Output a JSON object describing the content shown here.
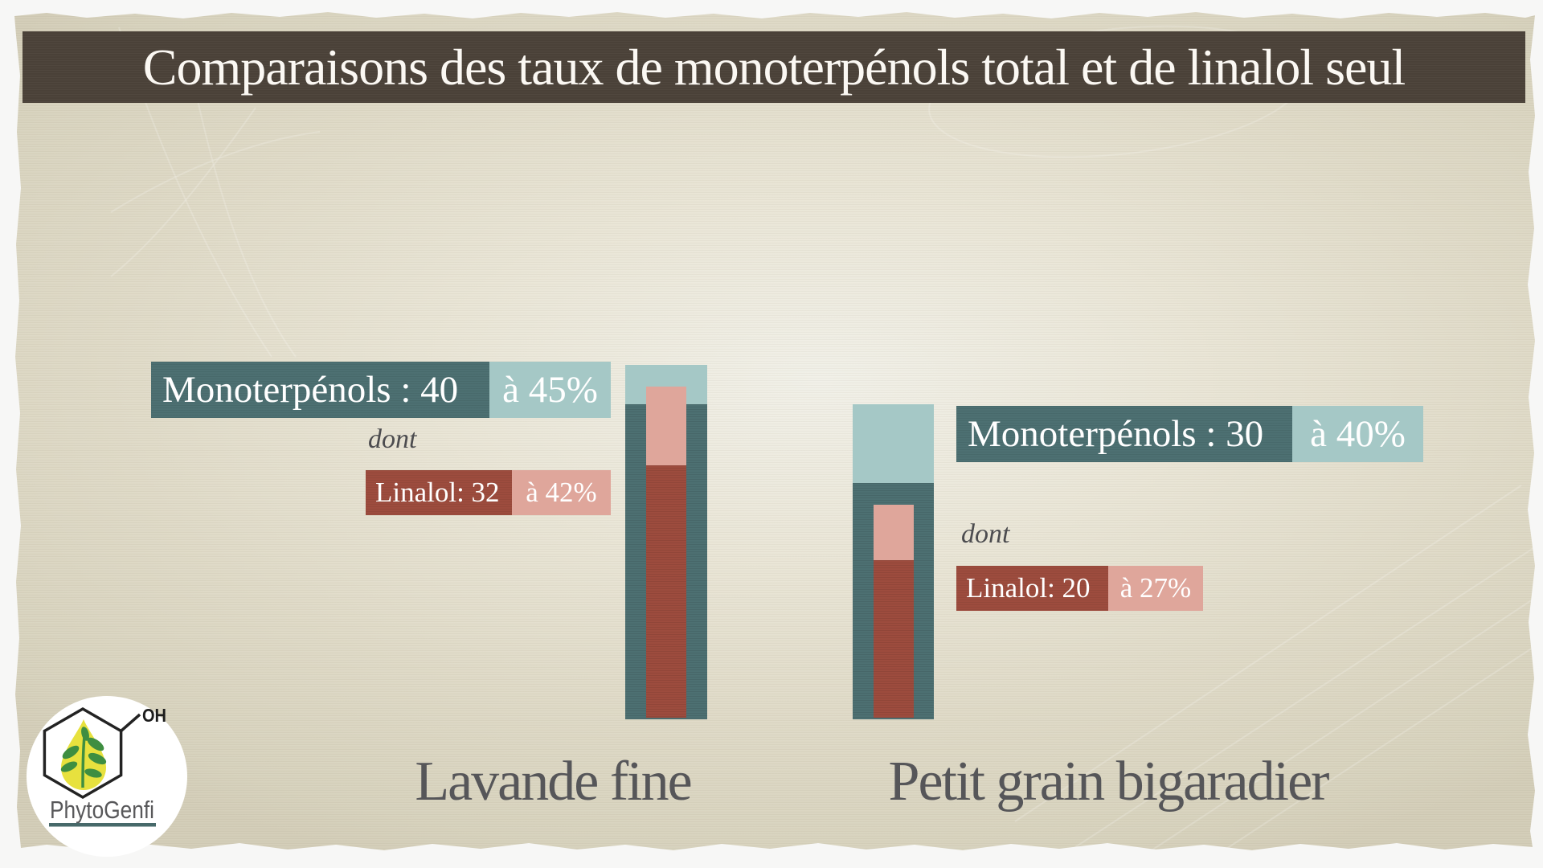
{
  "slide": {
    "title": "Comparaisons des taux de monoterpénols total et de linalol seul",
    "title_bar_color": "#4a4138",
    "paper_color": "#dfdac7"
  },
  "logo": {
    "brand": "PhytoGenfi",
    "formula_label": "OH",
    "drop_color": "#e7e13e",
    "plant_color": "#3e8e41",
    "underline_color": "#47696a"
  },
  "chart_data": {
    "type": "bar",
    "title": "Comparaisons des taux de monoterpénols total et de linalol seul",
    "unit": "%",
    "ylim": [
      0,
      45
    ],
    "value_axis_visible": false,
    "grid": false,
    "legend_position": "none",
    "categories": [
      "Lavande fine",
      "Petit grain bigaradier"
    ],
    "series": [
      {
        "name": "Monoterpénols",
        "values": [
          {
            "min": 40,
            "max": 45
          },
          {
            "min": 30,
            "max": 40
          }
        ]
      },
      {
        "name": "Linalol",
        "values": [
          {
            "min": 32,
            "max": 42
          },
          {
            "min": 20,
            "max": 27
          }
        ]
      }
    ],
    "groups": [
      {
        "category": "Lavande fine",
        "monoterpenols": {
          "min": 40,
          "max": 45
        },
        "linalol": {
          "min": 32,
          "max": 42
        },
        "labels": {
          "monoterpenols_main": "Monoterpénols : 40",
          "monoterpenols_range": "à 45%",
          "dont": "dont",
          "linalol_main": "Linalol: 32",
          "linalol_range": "à 42%"
        }
      },
      {
        "category": "Petit grain bigaradier",
        "monoterpenols": {
          "min": 30,
          "max": 40
        },
        "linalol": {
          "min": 20,
          "max": 27
        },
        "labels": {
          "monoterpenols_main": "Monoterpénols : 30",
          "monoterpenols_range": "à 40%",
          "dont": "dont",
          "linalol_main": "Linalol: 20",
          "linalol_range": "à 27%"
        }
      }
    ],
    "colors": {
      "monoterpenols_solid": "#4d7072",
      "monoterpenols_range": "#a5c8c6",
      "linalol_solid": "#9d4c3e",
      "linalol_range": "#dfa69b"
    }
  }
}
